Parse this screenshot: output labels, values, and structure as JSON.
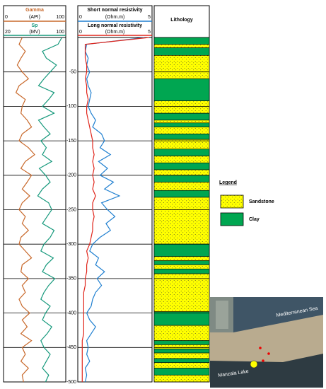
{
  "chart_data": {
    "type": "well-log",
    "depth": [
      0,
      -10,
      -20,
      -30,
      -40,
      -50,
      -60,
      -70,
      -80,
      -90,
      -100,
      -110,
      -120,
      -130,
      -140,
      -150,
      -160,
      -170,
      -180,
      -190,
      -200,
      -210,
      -220,
      -230,
      -240,
      -250,
      -260,
      -270,
      -280,
      -290,
      -300,
      -310,
      -320,
      -330,
      -340,
      -350,
      -360,
      -370,
      -380,
      -390,
      -400,
      -410,
      -420,
      -430,
      -440,
      -450,
      -460,
      -470,
      -480,
      -490,
      -500
    ],
    "ylim": [
      -500,
      0
    ],
    "yticks": [
      -50,
      -100,
      -150,
      -200,
      -250,
      -300,
      -350,
      -400,
      -450,
      -500
    ],
    "tracks": [
      {
        "curves": [
          {
            "name": "Gamma",
            "unit": "(API)",
            "xlim": [
              0,
              100
            ],
            "color": "#c8682a",
            "values": [
              30,
              25,
              35,
              28,
              22,
              30,
              40,
              25,
              20,
              35,
              30,
              28,
              38,
              45,
              30,
              25,
              40,
              50,
              35,
              28,
              45,
              38,
              30,
              42,
              30,
              25,
              35,
              30,
              40,
              28,
              25,
              35,
              45,
              30,
              28,
              40,
              30,
              35,
              25,
              30,
              42,
              30,
              38,
              28,
              45,
              30,
              35,
              28,
              40,
              30,
              32
            ]
          },
          {
            "name": "Sp",
            "unit": "(MV)",
            "xlim": [
              20,
              100
            ],
            "color": "#16997c",
            "values": [
              95,
              90,
              70,
              75,
              88,
              80,
              72,
              65,
              85,
              78,
              70,
              85,
              65,
              72,
              80,
              68,
              75,
              70,
              82,
              66,
              74,
              80,
              70,
              64,
              78,
              82,
              76,
              70,
              85,
              80,
              72,
              68,
              84,
              75,
              70,
              86,
              78,
              72,
              68,
              80,
              74,
              70,
              82,
              76,
              68,
              72,
              80,
              75,
              70,
              78,
              74
            ]
          }
        ]
      },
      {
        "curves": [
          {
            "name": "Short normal resistivity",
            "unit": "(Ohm.m)",
            "xlim": [
              0,
              5
            ],
            "color": "#1f7fd0",
            "values": [
              4.5,
              0.6,
              0.5,
              0.7,
              0.6,
              0.8,
              0.6,
              0.7,
              0.9,
              0.8,
              0.7,
              0.9,
              1.2,
              1.0,
              1.6,
              1.8,
              1.5,
              2.2,
              1.4,
              2.0,
              1.5,
              2.4,
              1.8,
              2.8,
              1.6,
              2.0,
              2.5,
              1.9,
              2.2,
              1.5,
              1.0,
              0.8,
              1.4,
              1.2,
              1.8,
              1.3,
              1.6,
              1.2,
              1.0,
              0.9,
              0.6,
              0.8,
              1.2,
              0.9,
              0.6,
              0.7,
              0.6,
              0.8,
              0.5,
              0.6,
              0.5
            ]
          },
          {
            "name": "Long normal resistivity",
            "unit": "(Ohm.m)",
            "xlim": [
              0,
              5
            ],
            "color": "#e0261c",
            "values": [
              4.8,
              0.5,
              0.5,
              0.5,
              0.6,
              0.6,
              0.5,
              0.6,
              0.6,
              0.7,
              0.6,
              0.6,
              0.7,
              0.8,
              0.9,
              1.0,
              1.0,
              1.1,
              1.0,
              1.1,
              1.0,
              1.1,
              1.0,
              1.2,
              1.0,
              1.0,
              1.1,
              1.0,
              1.0,
              0.9,
              0.8,
              0.6,
              0.7,
              0.6,
              0.6,
              0.5,
              0.5,
              0.4,
              0.4,
              0.4,
              0.4,
              0.4,
              0.4,
              0.4,
              0.3,
              0.3,
              0.3,
              0.3,
              0.3,
              0.3,
              0.3
            ]
          }
        ]
      }
    ],
    "lithology": {
      "title": "Lithology",
      "layers": [
        {
          "top": 0,
          "bottom": -10,
          "rock": "Clay"
        },
        {
          "top": -10,
          "bottom": -15,
          "rock": "Sandstone"
        },
        {
          "top": -15,
          "bottom": -26,
          "rock": "Clay"
        },
        {
          "top": -26,
          "bottom": -60,
          "rock": "Sandstone"
        },
        {
          "top": -60,
          "bottom": -92,
          "rock": "Clay"
        },
        {
          "top": -92,
          "bottom": -110,
          "rock": "Sandstone"
        },
        {
          "top": -110,
          "bottom": -120,
          "rock": "Clay"
        },
        {
          "top": -120,
          "bottom": -124,
          "rock": "Sandstone"
        },
        {
          "top": -124,
          "bottom": -130,
          "rock": "Clay"
        },
        {
          "top": -130,
          "bottom": -140,
          "rock": "Sandstone"
        },
        {
          "top": -140,
          "bottom": -148,
          "rock": "Clay"
        },
        {
          "top": -148,
          "bottom": -162,
          "rock": "Sandstone"
        },
        {
          "top": -162,
          "bottom": -172,
          "rock": "Clay"
        },
        {
          "top": -172,
          "bottom": -182,
          "rock": "Sandstone"
        },
        {
          "top": -182,
          "bottom": -192,
          "rock": "Clay"
        },
        {
          "top": -192,
          "bottom": -200,
          "rock": "Sandstone"
        },
        {
          "top": -200,
          "bottom": -210,
          "rock": "Clay"
        },
        {
          "top": -210,
          "bottom": -222,
          "rock": "Sandstone"
        },
        {
          "top": -222,
          "bottom": -232,
          "rock": "Clay"
        },
        {
          "top": -232,
          "bottom": -300,
          "rock": "Sandstone"
        },
        {
          "top": -300,
          "bottom": -318,
          "rock": "Clay"
        },
        {
          "top": -318,
          "bottom": -324,
          "rock": "Sandstone"
        },
        {
          "top": -324,
          "bottom": -330,
          "rock": "Clay"
        },
        {
          "top": -330,
          "bottom": -336,
          "rock": "Sandstone"
        },
        {
          "top": -336,
          "bottom": -343,
          "rock": "Clay"
        },
        {
          "top": -343,
          "bottom": -398,
          "rock": "Sandstone"
        },
        {
          "top": -398,
          "bottom": -418,
          "rock": "Clay"
        },
        {
          "top": -418,
          "bottom": -440,
          "rock": "Sandstone"
        },
        {
          "top": -440,
          "bottom": -446,
          "rock": "Clay"
        },
        {
          "top": -446,
          "bottom": -452,
          "rock": "Sandstone"
        },
        {
          "top": -452,
          "bottom": -458,
          "rock": "Clay"
        },
        {
          "top": -458,
          "bottom": -466,
          "rock": "Sandstone"
        },
        {
          "top": -466,
          "bottom": -472,
          "rock": "Clay"
        },
        {
          "top": -472,
          "bottom": -480,
          "rock": "Sandstone"
        },
        {
          "top": -480,
          "bottom": -490,
          "rock": "Clay"
        },
        {
          "top": -490,
          "bottom": -500,
          "rock": "Sandstone"
        }
      ]
    },
    "legend": {
      "title": "Legend",
      "items": [
        {
          "name": "Sandstone",
          "color": "#ffff00"
        },
        {
          "name": "Clay",
          "color": "#00a651"
        }
      ]
    }
  },
  "map": {
    "labels": [
      "Mediterranean Sea",
      "Manzala Lake"
    ]
  }
}
